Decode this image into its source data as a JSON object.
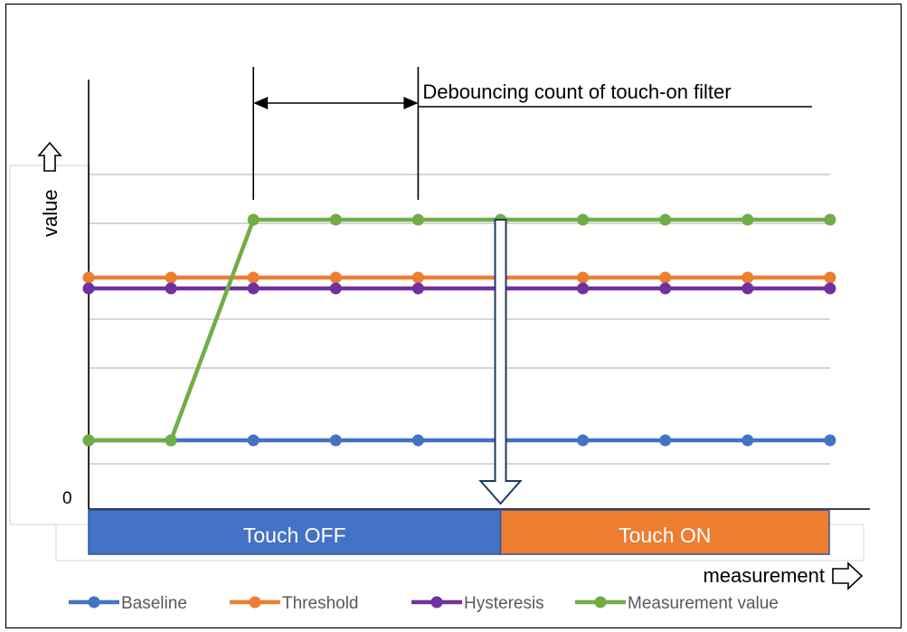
{
  "chart_data": {
    "type": "line",
    "ylabel": "value",
    "xlabel": "measurement",
    "y_zero_label": "0",
    "x": [
      1,
      2,
      3,
      4,
      5,
      6,
      7,
      8,
      9,
      10
    ],
    "ylim": [
      0,
      100
    ],
    "grid": true,
    "legend_position": "bottom",
    "series": [
      {
        "name": "Baseline",
        "color": "#4472C4",
        "values": [
          19,
          19,
          19,
          19,
          19,
          19,
          19,
          19,
          19,
          19
        ]
      },
      {
        "name": "Threshold",
        "color": "#ED7D31",
        "values": [
          64,
          64,
          64,
          64,
          64,
          64,
          64,
          64,
          64,
          64
        ]
      },
      {
        "name": "Hysteresis",
        "color": "#7030A0",
        "values": [
          61,
          61,
          61,
          61,
          61,
          61,
          61,
          61,
          61,
          61
        ]
      },
      {
        "name": "Measurement value",
        "color": "#70AD47",
        "values": [
          19,
          19,
          80,
          80,
          80,
          80,
          80,
          80,
          80,
          80
        ]
      }
    ],
    "annotations": {
      "debounce_label": "Debouncing count of touch-on filter",
      "debounce_from_x": 3,
      "debounce_to_x": 5,
      "detect_x": 6
    },
    "state_bar": [
      {
        "label": "Touch OFF",
        "color": "#4472C4",
        "from_x": 1,
        "to_x": 6
      },
      {
        "label": "Touch ON",
        "color": "#ED7D31",
        "from_x": 6,
        "to_x": 10
      }
    ]
  }
}
